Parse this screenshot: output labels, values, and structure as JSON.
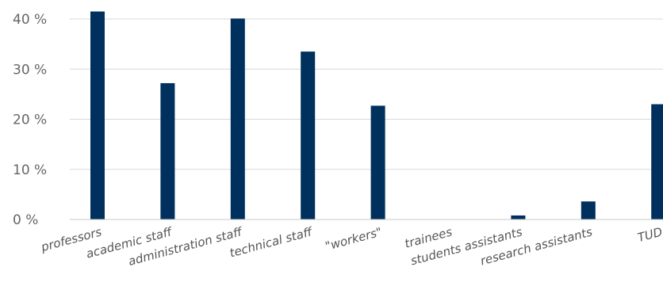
{
  "chart_data": {
    "type": "bar",
    "title": "",
    "xlabel": "",
    "ylabel": "",
    "ylim": [
      0,
      40
    ],
    "yticks": [
      {
        "value": 0,
        "label": "0 %"
      },
      {
        "value": 10,
        "label": "10 %"
      },
      {
        "value": 20,
        "label": "20 %"
      },
      {
        "value": 30,
        "label": "30 %"
      },
      {
        "value": 40,
        "label": "40 %"
      }
    ],
    "grid": true,
    "legend": "none",
    "categories": [
      "professors",
      "academic staff",
      "administration staff",
      "technical staff",
      "\"workers\"",
      "trainees",
      "students assistants",
      "research assistants",
      "TUD"
    ],
    "values": [
      41.5,
      27.2,
      40.1,
      33.5,
      22.7,
      0,
      0.8,
      3.6,
      23.0
    ],
    "bar_color": "#00305d"
  }
}
